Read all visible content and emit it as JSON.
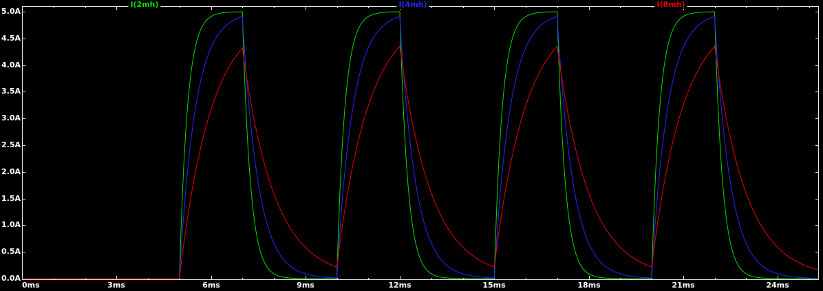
{
  "app": {
    "name": "waveform-viewer",
    "background": "#000000"
  },
  "chart_data": {
    "type": "line",
    "title": "",
    "xlabel": "",
    "ylabel": "",
    "x_unit": "ms",
    "y_unit": "A",
    "x_range_ms": [
      0,
      25.3
    ],
    "y_range_A": [
      -0.05,
      5.11
    ],
    "grid": "off",
    "legend_position": "top",
    "axis_color": "#e6e6e6",
    "tick_label_color": "#ffffff",
    "x_minor_tick_every_ms": 1,
    "x_ticks": [
      {
        "label": "0ms",
        "ms": 0
      },
      {
        "label": "3ms",
        "ms": 3
      },
      {
        "label": "6ms",
        "ms": 6
      },
      {
        "label": "9ms",
        "ms": 9
      },
      {
        "label": "12ms",
        "ms": 12
      },
      {
        "label": "15ms",
        "ms": 15
      },
      {
        "label": "18ms",
        "ms": 18
      },
      {
        "label": "21ms",
        "ms": 21
      },
      {
        "label": "24ms",
        "ms": 24
      }
    ],
    "y_ticks": [
      {
        "label": "0.0A",
        "A": 0.0
      },
      {
        "label": "0.5A",
        "A": 0.5
      },
      {
        "label": "1.0A",
        "A": 1.0
      },
      {
        "label": "1.5A",
        "A": 1.5
      },
      {
        "label": "2.0A",
        "A": 2.0
      },
      {
        "label": "2.5A",
        "A": 2.5
      },
      {
        "label": "3.0A",
        "A": 3.0
      },
      {
        "label": "3.5A",
        "A": 3.5
      },
      {
        "label": "4.0A",
        "A": 4.0
      },
      {
        "label": "4.5A",
        "A": 4.5
      },
      {
        "label": "5.0A",
        "A": 5.0
      }
    ],
    "drive": {
      "i_steady_A": 5.0,
      "pulse_start_ms": 5.0,
      "period_ms": 5.0,
      "on_ms": 2.0,
      "cycles": 4,
      "rise_start_times_ms": [
        5,
        10,
        15,
        20
      ],
      "peak_times_ms": [
        7,
        12,
        17,
        22
      ]
    },
    "series": [
      {
        "name": "I(2mh)",
        "color": "#00e000",
        "tau_ms": 0.25,
        "peaks_A": [
          5.0,
          5.0,
          5.0,
          5.0
        ],
        "valleys_A": [
          0.0,
          0.0,
          0.0,
          0.0
        ]
      },
      {
        "name": "I(4mh)",
        "color": "#2828ff",
        "tau_ms": 0.5,
        "peaks_A": [
          4.91,
          4.91,
          4.91,
          4.91
        ],
        "valleys_A": [
          0.01,
          0.01,
          0.01,
          0.01
        ]
      },
      {
        "name": "I(8mh)",
        "color": "#ee0000",
        "tau_ms": 1.0,
        "peaks_A": [
          4.32,
          4.35,
          4.35,
          4.35
        ],
        "valleys_A": [
          0.22,
          0.22,
          0.22,
          0.16
        ]
      }
    ]
  }
}
